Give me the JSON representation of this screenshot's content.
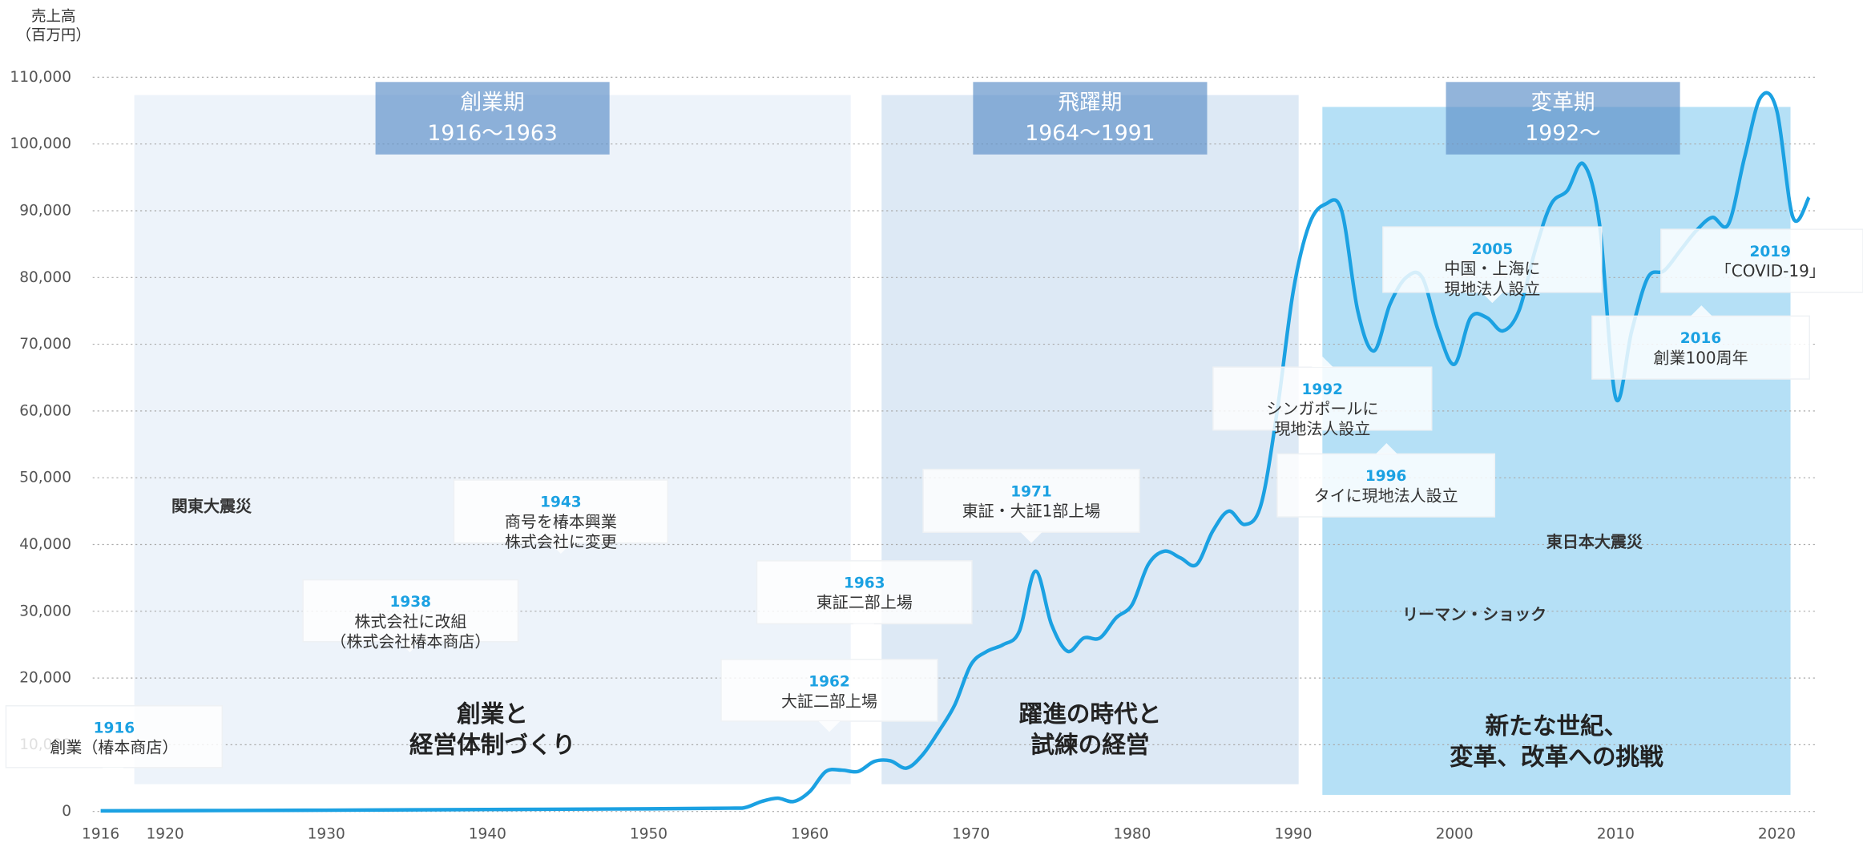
{
  "chart_data": {
    "type": "line",
    "y_label": [
      "売上高",
      "（百万円）"
    ],
    "xlim": [
      1916,
      2022
    ],
    "xticks": [
      1916,
      1920,
      1930,
      1940,
      1950,
      1960,
      1970,
      1980,
      1990,
      2000,
      2010,
      2020
    ],
    "ylim": [
      0,
      110000
    ],
    "yticks": [
      0,
      {
        "value": 10000,
        "label": "10,000"
      },
      {
        "value": 20000,
        "label": "20,000"
      },
      {
        "value": 30000,
        "label": "30,000"
      },
      {
        "value": 40000,
        "label": "40,000"
      },
      {
        "value": 50000,
        "label": "50,000"
      },
      {
        "value": 60000,
        "label": "60,000"
      },
      {
        "value": 70000,
        "label": "70,000"
      },
      {
        "value": 80000,
        "label": "80,000"
      },
      {
        "value": 90000,
        "label": "90,000"
      },
      {
        "value": 100000,
        "label": "100,000"
      },
      {
        "value": 110000,
        "label": "110,000"
      }
    ],
    "grid": true,
    "color": "#1ba1e2",
    "x": [
      1916,
      1930,
      1940,
      1950,
      1955,
      1956,
      1957,
      1958,
      1959,
      1960,
      1961,
      1962,
      1963,
      1964,
      1965,
      1966,
      1967,
      1968,
      1969,
      1970,
      1971,
      1972,
      1973,
      1974,
      1975,
      1976,
      1977,
      1978,
      1979,
      1980,
      1981,
      1982,
      1983,
      1984,
      1985,
      1986,
      1987,
      1988,
      1989,
      1990,
      1991,
      1992,
      1993,
      1994,
      1995,
      1996,
      1997,
      1998,
      1999,
      2000,
      2001,
      2002,
      2003,
      2004,
      2005,
      2006,
      2007,
      2008,
      2009,
      2010,
      2011,
      2012,
      2013,
      2014,
      2015,
      2016,
      2017,
      2018,
      2019,
      2020,
      2021,
      2022
    ],
    "values": [
      100,
      200,
      300,
      400,
      500,
      600,
      1500,
      2000,
      1500,
      3000,
      6000,
      6200,
      6000,
      7500,
      7600,
      6500,
      8500,
      12000,
      16000,
      22000,
      24000,
      25000,
      27000,
      36000,
      28000,
      24000,
      26000,
      26000,
      29000,
      31000,
      37000,
      39000,
      38000,
      37000,
      42000,
      45000,
      43000,
      46000,
      60000,
      78000,
      88000,
      91000,
      90000,
      75000,
      69000,
      76000,
      80000,
      80000,
      72000,
      67000,
      74000,
      74000,
      72000,
      75000,
      84000,
      91000,
      93000,
      97000,
      88000,
      62000,
      72000,
      80000,
      81000,
      84000,
      87000,
      89000,
      88000,
      98000,
      107000,
      105000,
      89000,
      92000
    ],
    "periods": [
      {
        "name": "創業期",
        "range": "1916〜1963",
        "caption": [
          "創業と",
          "経営体制づくり"
        ]
      },
      {
        "name": "飛躍期",
        "range": "1964〜1991",
        "caption": [
          "躍進の時代と",
          "試練の経営"
        ]
      },
      {
        "name": "変革期",
        "range": "1992〜",
        "caption": [
          "新たな世紀、",
          "変革、改革への挑戦"
        ]
      }
    ],
    "events": [
      {
        "year": 1916,
        "text": [
          "創業（椿本商店）"
        ]
      },
      {
        "year": 1938,
        "text": [
          "株式会社に改組",
          "（株式会社椿本商店）"
        ]
      },
      {
        "year": 1943,
        "text": [
          "商号を椿本興業",
          "株式会社に変更"
        ]
      },
      {
        "year": 1962,
        "text": [
          "大証二部上場"
        ]
      },
      {
        "year": 1963,
        "text": [
          "東証二部上場"
        ]
      },
      {
        "year": 1971,
        "text": [
          "東証・大証1部上場"
        ]
      },
      {
        "year": 1992,
        "text": [
          "シンガポールに",
          "現地法人設立"
        ]
      },
      {
        "year": 1996,
        "text": [
          "タイに現地法人設立"
        ]
      },
      {
        "year": 2005,
        "text": [
          "中国・上海に",
          "現地法人設立"
        ]
      },
      {
        "year": 2016,
        "text": [
          "創業100周年"
        ]
      },
      {
        "year": 2019,
        "text": [
          "「COVID-19」"
        ]
      }
    ],
    "notes": [
      "関東大震災",
      "リーマン・ショック",
      "東日本大震災"
    ]
  }
}
